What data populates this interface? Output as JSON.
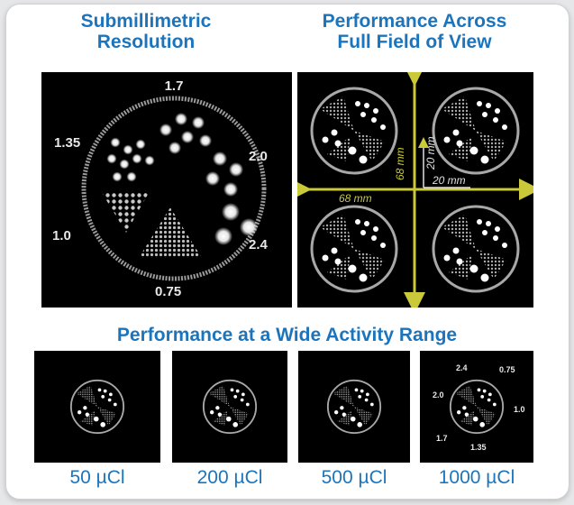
{
  "titles": {
    "resolution_line1": "Submillimetric",
    "resolution_line2": "Resolution",
    "fov_line1": "Performance Across",
    "fov_line2": "Full Field of View",
    "activity": "Performance at a Wide Activity Range"
  },
  "resolution_panel": {
    "labels": [
      "1.7",
      "1.35",
      "2.0",
      "1.0",
      "2.4",
      "0.75"
    ]
  },
  "fov_panel": {
    "label_68_horizontal": "68 mm",
    "label_68_vertical": "68 mm",
    "label_20_vertical": "20 mm",
    "label_20_horizontal": "20 mm"
  },
  "activity_panels": [
    {
      "label": "50 µCl"
    },
    {
      "label": "200 µCl"
    },
    {
      "label": "500 µCl"
    },
    {
      "label": "1000 µCl"
    }
  ],
  "last_panel_labels": [
    "2.4",
    "0.75",
    "2.0",
    "1.0",
    "1.7",
    "1.35"
  ],
  "colors": {
    "title_blue": "#1c75bc",
    "panel_bg": "#000000",
    "arrow_yellow": "#c9c93a"
  }
}
